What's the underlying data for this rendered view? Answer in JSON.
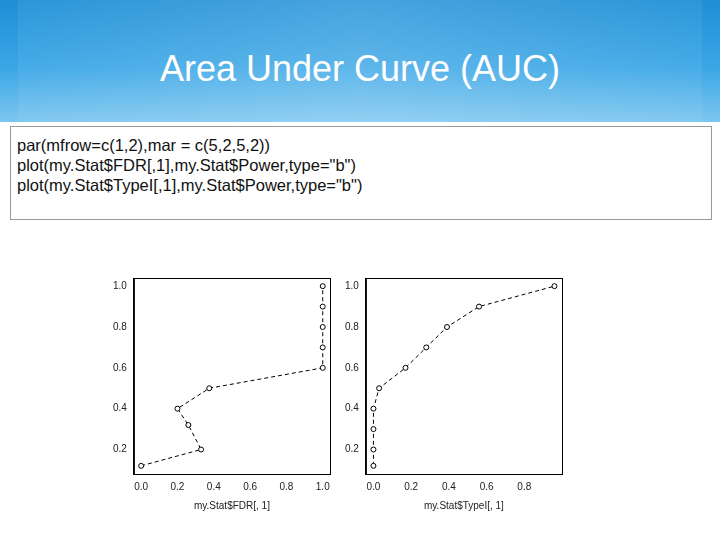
{
  "slide": {
    "title": "Area Under Curve (AUC)",
    "code": [
      "par(mfrow=c(1,2),mar = c(5,2,5,2))",
      "plot(my.Stat$FDR[,1],my.Stat$Power,type=\"b\")",
      "plot(my.Stat$TypeI[,1],my.Stat$Power,type=\"b\")"
    ]
  },
  "chart_data": [
    {
      "type": "line",
      "x_label": "my.Stat$FDR[, 1]",
      "x": [
        0.0,
        0.33,
        0.26,
        0.2,
        0.375,
        1.0,
        1.0,
        1.0,
        1.0,
        1.0
      ],
      "values": [
        0.12,
        0.2,
        0.32,
        0.4,
        0.5,
        0.6,
        0.7,
        0.8,
        0.9,
        1.0
      ],
      "color": "#000000",
      "marker": "circle",
      "line_style": "dashed",
      "grid": false,
      "xlim": [
        -0.04,
        1.04
      ],
      "xticks": [
        {
          "value": 0,
          "label": "0.0"
        },
        0.2,
        0.4,
        0.6,
        0.8,
        {
          "value": 1,
          "label": "1.0"
        }
      ],
      "ylim": [
        0.08,
        1.04
      ],
      "yticks": [
        0.2,
        0.4,
        0.6,
        0.8,
        {
          "value": 1,
          "label": "1.0"
        }
      ]
    },
    {
      "type": "line",
      "x_label": "my.Stat$TypeI[, 1]",
      "x": [
        0.0,
        0.0,
        0.0,
        0.0,
        0.03,
        0.17,
        0.28,
        0.39,
        0.56,
        0.96
      ],
      "values": [
        0.12,
        0.2,
        0.3,
        0.4,
        0.5,
        0.6,
        0.7,
        0.8,
        0.9,
        1.0
      ],
      "color": "#000000",
      "marker": "circle",
      "line_style": "dashed",
      "grid": false,
      "xlim": [
        -0.04,
        1.0
      ],
      "xticks": [
        {
          "value": 0,
          "label": "0.0"
        },
        0.2,
        0.4,
        0.6,
        0.8
      ],
      "ylim": [
        0.08,
        1.04
      ],
      "yticks": [
        0.2,
        0.4,
        0.6,
        0.8,
        {
          "value": 1,
          "label": "1.0"
        }
      ]
    }
  ]
}
